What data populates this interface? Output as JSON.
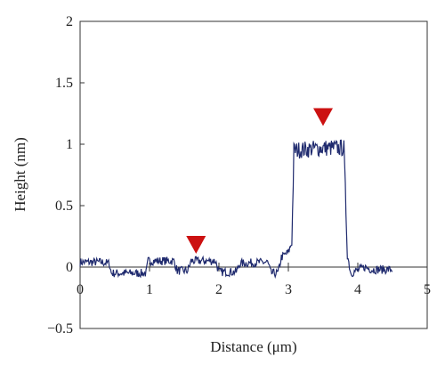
{
  "chart_data": {
    "type": "line",
    "title": "",
    "xlabel": "Distance (μm)",
    "ylabel": "Height (nm)",
    "xlim": [
      0,
      5
    ],
    "ylim": [
      -0.5,
      2
    ],
    "x_ticks": [
      0,
      1,
      2,
      3,
      4,
      5
    ],
    "x_tick_labels": [
      "0",
      "1",
      "2",
      "3",
      "4",
      "5"
    ],
    "y_ticks": [
      -0.5,
      0,
      0.5,
      1,
      1.5,
      2
    ],
    "y_tick_labels": [
      "−0.5",
      "0",
      "0.5",
      "1",
      "1.5",
      "2"
    ],
    "grid": false,
    "series": [
      {
        "color": "#1f2a6e",
        "x": [
          0.0,
          0.3,
          0.42,
          0.45,
          0.95,
          0.98,
          1.35,
          1.4,
          1.55,
          1.6,
          1.95,
          2.0,
          2.25,
          2.3,
          2.7,
          2.75,
          2.85,
          2.9,
          3.0,
          3.05,
          3.08,
          3.5,
          3.8,
          3.85,
          3.9,
          4.1,
          4.2,
          4.5
        ],
        "base": [
          0.04,
          0.04,
          0.03,
          -0.05,
          -0.05,
          0.05,
          0.05,
          -0.03,
          -0.03,
          0.05,
          0.05,
          -0.04,
          -0.04,
          0.03,
          0.04,
          -0.05,
          -0.05,
          0.08,
          0.12,
          0.2,
          0.95,
          0.97,
          0.97,
          0.1,
          -0.05,
          0.0,
          -0.02,
          -0.02
        ]
      }
    ],
    "markers": [
      {
        "x": 1.67,
        "y": 0.08,
        "color": "#cc1111"
      },
      {
        "x": 3.5,
        "y": 1.12,
        "color": "#cc1111"
      }
    ]
  }
}
